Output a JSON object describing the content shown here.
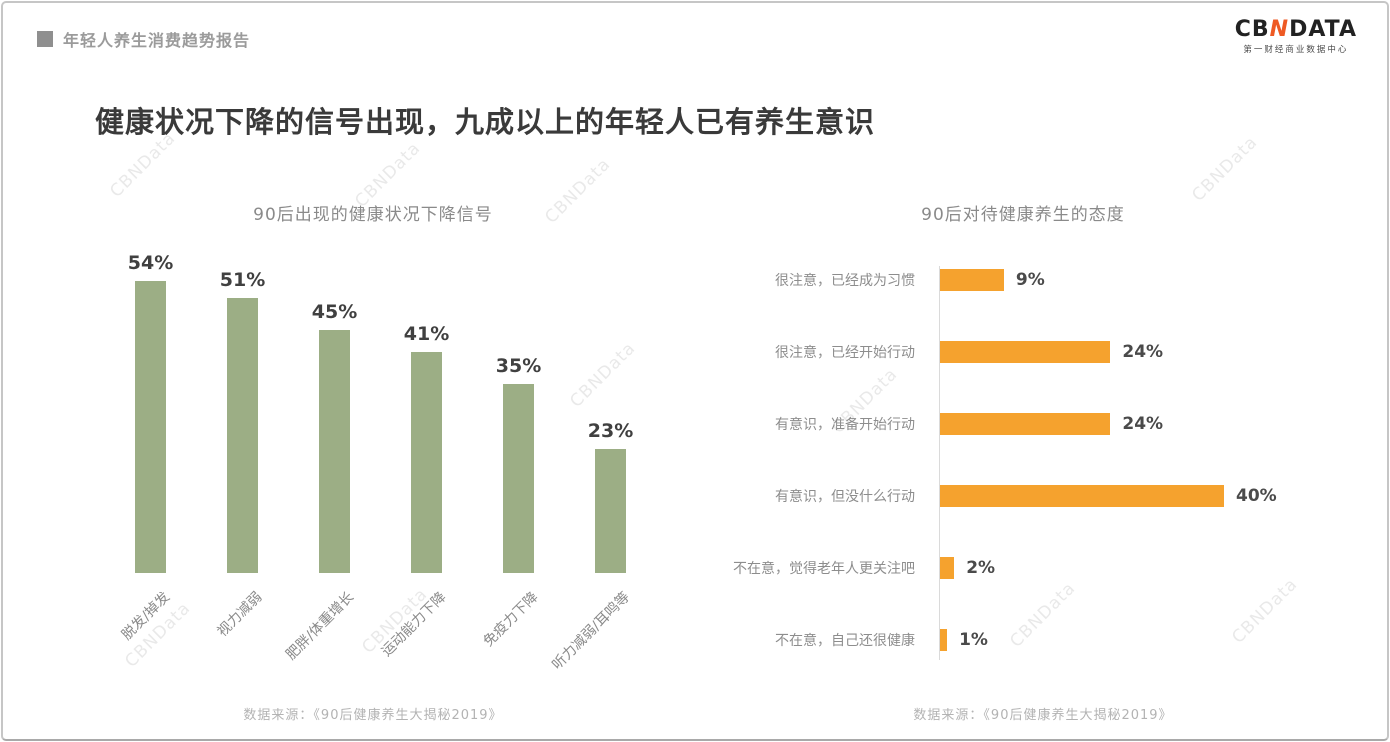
{
  "page": {
    "header": {
      "report_label": "年轻人养生消费趋势报告",
      "logo_cb": "CB",
      "logo_n": "N",
      "logo_data": "DATA",
      "logo_subtitle": "第一财经商业数据中心"
    },
    "title": "健康状况下降的信号出现，九成以上的年轻人已有养生意识",
    "watermark_text": "CBNData"
  },
  "colors": {
    "green_bar": "#9cae85",
    "orange_bar": "#f5a22e",
    "logo_accent": "#ee5a24",
    "header_gray": "#9b9b9b"
  },
  "chart_data": [
    {
      "type": "bar",
      "title": "90后出现的健康状况下降信号",
      "categories": [
        "脱发/掉发",
        "视力减弱",
        "肥胖/体重增长",
        "运动能力下降",
        "免疫力下降",
        "听力减弱/耳鸣等"
      ],
      "values": [
        54,
        51,
        45,
        41,
        35,
        23
      ],
      "unit": "%",
      "ylim": [
        0,
        60
      ],
      "grid": false,
      "bar_color": "#9cae85",
      "source": "数据来源：《90后健康养生大揭秘2019》"
    },
    {
      "type": "bar",
      "orientation": "horizontal",
      "title": "90后对待健康养生的态度",
      "categories": [
        "很注意，已经成为习惯",
        "很注意，已经开始行动",
        "有意识，准备开始行动",
        "有意识，但没什么行动",
        "不在意，觉得老年人更关注吧",
        "不在意，自己还很健康"
      ],
      "values": [
        9,
        24,
        24,
        40,
        2,
        1
      ],
      "unit": "%",
      "xlim": [
        0,
        45
      ],
      "grid": false,
      "bar_color": "#f5a22e",
      "source": "数据来源：《90后健康养生大揭秘2019》"
    }
  ]
}
